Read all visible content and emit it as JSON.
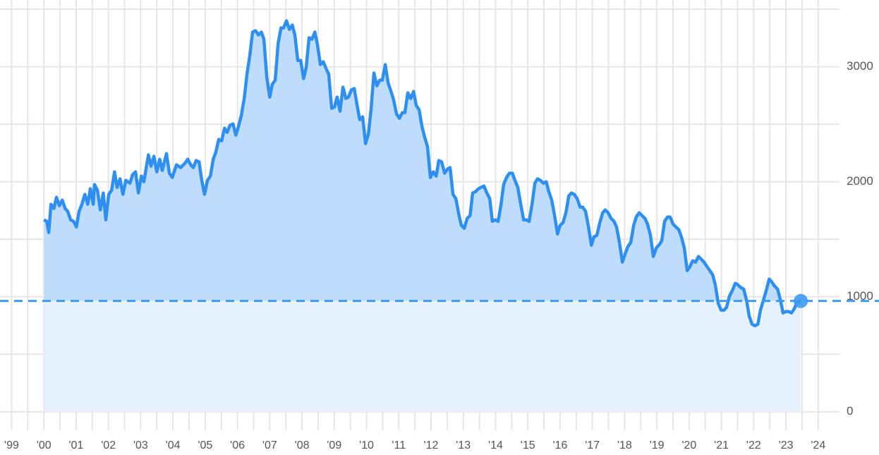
{
  "chart_data": {
    "type": "area",
    "x": [
      2000.0,
      2000.09,
      2000.15,
      2000.22,
      2000.31,
      2000.39,
      2000.48,
      2000.57,
      2000.66,
      2000.74,
      2000.83,
      2000.92,
      2001.01,
      2001.09,
      2001.18,
      2001.27,
      2001.36,
      2001.44,
      2001.53,
      2001.57,
      2001.66,
      2001.75,
      2001.84,
      2001.92,
      2002.01,
      2002.1,
      2002.19,
      2002.27,
      2002.36,
      2002.45,
      2002.54,
      2002.67,
      2002.75,
      2002.84,
      2002.93,
      2003.02,
      2003.1,
      2003.24,
      2003.32,
      2003.41,
      2003.5,
      2003.59,
      2003.67,
      2003.8,
      2003.89,
      2003.98,
      2004.11,
      2004.24,
      2004.37,
      2004.46,
      2004.55,
      2004.63,
      2004.72,
      2004.81,
      2004.9,
      2004.98,
      2005.07,
      2005.16,
      2005.25,
      2005.33,
      2005.42,
      2005.51,
      2005.6,
      2005.68,
      2005.77,
      2005.86,
      2005.95,
      2006.03,
      2006.12,
      2006.21,
      2006.3,
      2006.38,
      2006.47,
      2006.56,
      2006.65,
      2006.74,
      2006.82,
      2006.91,
      2007.0,
      2007.08,
      2007.17,
      2007.26,
      2007.35,
      2007.43,
      2007.52,
      2007.61,
      2007.7,
      2007.78,
      2007.87,
      2007.96,
      2008.05,
      2008.13,
      2008.22,
      2008.31,
      2008.4,
      2008.48,
      2008.57,
      2008.66,
      2008.75,
      2008.83,
      2008.92,
      2009.01,
      2009.09,
      2009.18,
      2009.27,
      2009.36,
      2009.44,
      2009.53,
      2009.62,
      2009.71,
      2009.79,
      2009.88,
      2009.97,
      2010.06,
      2010.14,
      2010.23,
      2010.32,
      2010.41,
      2010.49,
      2010.58,
      2010.67,
      2010.76,
      2010.84,
      2010.93,
      2011.02,
      2011.11,
      2011.19,
      2011.28,
      2011.37,
      2011.46,
      2011.54,
      2011.63,
      2011.72,
      2011.81,
      2011.89,
      2011.98,
      2012.07,
      2012.16,
      2012.24,
      2012.33,
      2012.42,
      2012.51,
      2012.59,
      2012.68,
      2012.77,
      2012.86,
      2012.94,
      2013.03,
      2013.12,
      2013.21,
      2013.29,
      2013.38,
      2013.47,
      2013.55,
      2013.64,
      2013.73,
      2013.82,
      2013.9,
      2013.99,
      2014.08,
      2014.17,
      2014.25,
      2014.34,
      2014.43,
      2014.52,
      2014.6,
      2014.69,
      2014.78,
      2014.87,
      2014.95,
      2015.04,
      2015.13,
      2015.22,
      2015.3,
      2015.39,
      2015.48,
      2015.57,
      2015.65,
      2015.74,
      2015.83,
      2015.92,
      2016.0,
      2016.09,
      2016.18,
      2016.27,
      2016.35,
      2016.44,
      2016.53,
      2016.62,
      2016.7,
      2016.79,
      2016.88,
      2016.97,
      2017.05,
      2017.14,
      2017.23,
      2017.32,
      2017.4,
      2017.49,
      2017.58,
      2017.67,
      2017.75,
      2017.84,
      2017.93,
      2018.02,
      2018.1,
      2018.19,
      2018.28,
      2018.36,
      2018.45,
      2018.54,
      2018.63,
      2018.71,
      2018.8,
      2018.89,
      2018.98,
      2019.06,
      2019.15,
      2019.24,
      2019.33,
      2019.41,
      2019.5,
      2019.59,
      2019.68,
      2019.76,
      2019.85,
      2019.94,
      2020.03,
      2020.11,
      2020.2,
      2020.29,
      2020.38,
      2020.46,
      2020.55,
      2020.64,
      2020.73,
      2020.81,
      2020.9,
      2020.99,
      2021.08,
      2021.16,
      2021.25,
      2021.34,
      2021.43,
      2021.51,
      2021.6,
      2021.69,
      2021.78,
      2021.86,
      2021.95,
      2022.04,
      2022.13,
      2022.21,
      2022.3,
      2022.39,
      2022.48,
      2022.56,
      2022.65,
      2022.74,
      2022.82,
      2022.91,
      2023.0,
      2023.09,
      2023.17,
      2023.26,
      2023.35,
      2023.46
    ],
    "values": [
      1669,
      1656,
      1558,
      1804,
      1767,
      1865,
      1791,
      1840,
      1767,
      1742,
      1669,
      1656,
      1607,
      1742,
      1804,
      1890,
      1804,
      1939,
      1804,
      1975,
      1926,
      1755,
      1902,
      1669,
      1890,
      1926,
      2086,
      1951,
      2025,
      1890,
      2012,
      1988,
      2061,
      2086,
      1902,
      2049,
      2000,
      2233,
      2135,
      2221,
      2086,
      2196,
      2098,
      2245,
      2074,
      2037,
      2147,
      2123,
      2160,
      2196,
      2147,
      2123,
      2184,
      2172,
      2000,
      1890,
      2012,
      2049,
      2196,
      2258,
      2368,
      2356,
      2466,
      2429,
      2491,
      2503,
      2405,
      2479,
      2577,
      2724,
      2945,
      3092,
      3301,
      3313,
      3276,
      3301,
      3239,
      2908,
      2736,
      2847,
      2883,
      3202,
      3337,
      3337,
      3399,
      3325,
      3362,
      3276,
      3055,
      3055,
      2896,
      2994,
      3252,
      3239,
      3301,
      3190,
      3018,
      3043,
      2982,
      2933,
      2638,
      2650,
      2736,
      2613,
      2822,
      2724,
      2736,
      2798,
      2810,
      2663,
      2540,
      2564,
      2331,
      2417,
      2626,
      2945,
      2834,
      2883,
      2883,
      3018,
      2859,
      2785,
      2712,
      2589,
      2552,
      2601,
      2601,
      2773,
      2724,
      2785,
      2663,
      2626,
      2479,
      2380,
      2307,
      2037,
      2086,
      2049,
      2184,
      2172,
      2074,
      2110,
      2123,
      1890,
      1853,
      1718,
      1620,
      1595,
      1681,
      1706,
      1902,
      1914,
      1939,
      1951,
      1963,
      1902,
      1853,
      1656,
      1669,
      1656,
      1804,
      1975,
      2037,
      2074,
      2074,
      2012,
      1951,
      1804,
      1669,
      1669,
      1656,
      1804,
      1988,
      2025,
      2012,
      1988,
      2000,
      1914,
      1840,
      1706,
      1546,
      1620,
      1644,
      1730,
      1877,
      1902,
      1890,
      1853,
      1779,
      1779,
      1742,
      1607,
      1448,
      1521,
      1534,
      1644,
      1730,
      1755,
      1730,
      1681,
      1656,
      1607,
      1472,
      1301,
      1374,
      1436,
      1472,
      1620,
      1693,
      1730,
      1706,
      1681,
      1632,
      1534,
      1350,
      1423,
      1448,
      1485,
      1656,
      1693,
      1693,
      1632,
      1607,
      1583,
      1521,
      1423,
      1227,
      1264,
      1313,
      1301,
      1350,
      1325,
      1301,
      1264,
      1227,
      1190,
      1104,
      945,
      883,
      883,
      908,
      1006,
      1055,
      1117,
      1104,
      1080,
      1067,
      969,
      834,
      761,
      748,
      761,
      883,
      969,
      1055,
      1153,
      1129,
      1092,
      1067,
      982,
      859,
      871,
      871,
      859,
      896,
      957,
      963
    ],
    "reference_line": 963,
    "color": "#2e8ff0",
    "fill_above": "#bedcfb",
    "fill_below": "#e5f1fd",
    "xlim": [
      1998.64,
      2024.66
    ],
    "xticks": [
      {
        "value": 1999,
        "label": "'99"
      },
      {
        "value": 2000,
        "label": "'00"
      },
      {
        "value": 2001,
        "label": "'01"
      },
      {
        "value": 2002,
        "label": "'02"
      },
      {
        "value": 2003,
        "label": "'03"
      },
      {
        "value": 2004,
        "label": "'04"
      },
      {
        "value": 2005,
        "label": "'05"
      },
      {
        "value": 2006,
        "label": "'06"
      },
      {
        "value": 2007,
        "label": "'07"
      },
      {
        "value": 2008,
        "label": "'08"
      },
      {
        "value": 2009,
        "label": "'09"
      },
      {
        "value": 2010,
        "label": "'10"
      },
      {
        "value": 2011,
        "label": "'11"
      },
      {
        "value": 2012,
        "label": "'12"
      },
      {
        "value": 2013,
        "label": "'13"
      },
      {
        "value": 2014,
        "label": "'14"
      },
      {
        "value": 2015,
        "label": "'15"
      },
      {
        "value": 2016,
        "label": "'16"
      },
      {
        "value": 2017,
        "label": "'17"
      },
      {
        "value": 2018,
        "label": "'18"
      },
      {
        "value": 2019,
        "label": "'19"
      },
      {
        "value": 2020,
        "label": "'20"
      },
      {
        "value": 2021,
        "label": "'21"
      },
      {
        "value": 2022,
        "label": "'22"
      },
      {
        "value": 2023,
        "label": "'23"
      },
      {
        "value": 2024,
        "label": "'24"
      }
    ],
    "ylim": [
      -100,
      3580
    ],
    "yticks": [
      0,
      1000,
      2000,
      3000
    ],
    "minor_yticks": [
      500,
      1500,
      2500,
      3500
    ],
    "grid": true
  }
}
